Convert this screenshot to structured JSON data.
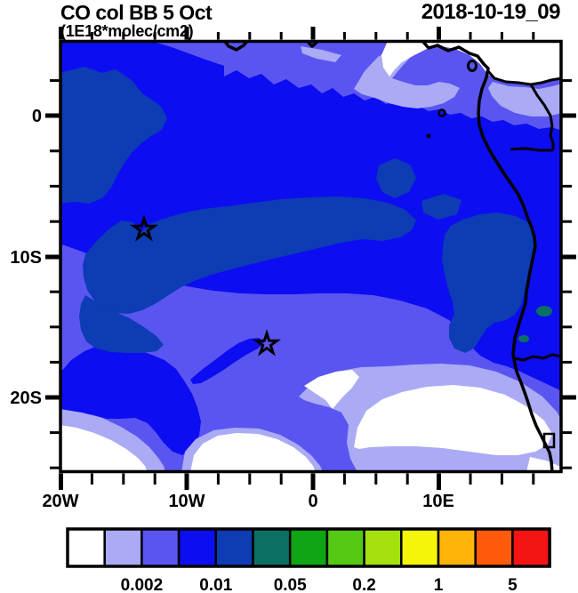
{
  "header": {
    "title": "CO col BB 5 Oct",
    "subtitle": "(1E18*molec/cm2)",
    "datetime": "2018-10-19_09"
  },
  "map": {
    "y_axis_labels": [
      "0",
      "10S",
      "20S"
    ],
    "x_axis_labels": [
      "20W",
      "10W",
      "0",
      "10E"
    ],
    "markers": [
      {
        "symbol": "star",
        "approx_position": "13.5W, 8.1S"
      },
      {
        "symbol": "star",
        "approx_position": "3.7W, 16.2S"
      }
    ]
  },
  "colorbar": {
    "labels": [
      "0.002",
      "0.01",
      "0.05",
      "0.2",
      "1",
      "5"
    ],
    "colors": [
      "#ffffff",
      "#aaaaf5",
      "#5a55f0",
      "#0d0df2",
      "#0d3cb4",
      "#0a7064",
      "#0fa514",
      "#55c814",
      "#a5e10f",
      "#f5f50a",
      "#ffb40a",
      "#ff5a0a",
      "#f51414"
    ]
  },
  "chart_data": {
    "type": "heatmap",
    "title": "CO col BB 5 Oct",
    "units": "1E18*molec/cm2",
    "timestamp": "2018-10-19_09",
    "x_tick_labels": [
      "20W",
      "10W",
      "0",
      "10E"
    ],
    "y_tick_labels": [
      "0",
      "10S",
      "20S"
    ],
    "lon_range_deg": [
      -20,
      17.7
    ],
    "lat_range_deg": [
      5.2,
      -25.3
    ],
    "contour_levels": [
      0.001,
      0.002,
      0.005,
      0.01,
      0.02,
      0.05,
      0.1,
      0.2,
      0.5,
      1,
      2,
      5
    ],
    "labeled_levels": [
      "0.002",
      "0.01",
      "0.05",
      "0.2",
      "1",
      "5"
    ],
    "palette": [
      "#ffffff",
      "#aaaaf5",
      "#5a55f0",
      "#0d0df2",
      "#0d3cb4",
      "#0a7064",
      "#0fa514",
      "#55c814",
      "#a5e10f",
      "#f5f50a",
      "#ffb40a",
      "#ff5a0a",
      "#f51414"
    ],
    "legend_position": "bottom",
    "grid": false,
    "markers": [
      {
        "symbol": "star",
        "lon": -13.5,
        "lat": -8.1
      },
      {
        "symbol": "star",
        "lon": -3.7,
        "lat": -16.2
      }
    ],
    "field_note": "Map shows values from <0.001 (white) up to 0.02-0.05 (dark blue / teal); highest band is a dark-blue plume across the upper-middle ocean and along the Angola coast; white minima in the south-west and south-east."
  }
}
